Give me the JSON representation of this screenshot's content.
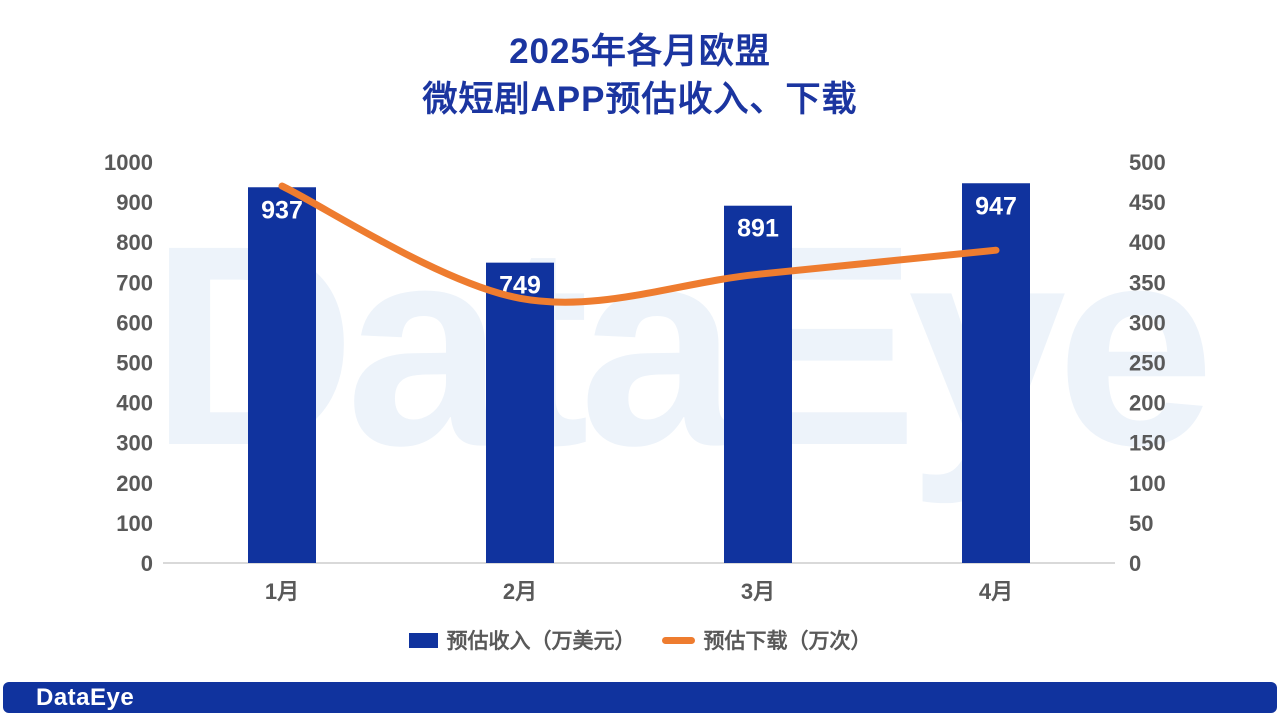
{
  "title": {
    "line1": "2025年各月欧盟",
    "line2": "微短剧APP预估收入、下载"
  },
  "watermark_text": "DataEye",
  "footer": {
    "logo_text": "DataEye"
  },
  "legend": {
    "revenue_label": "预估收入（万美元）",
    "downloads_label": "预估下载（万次）"
  },
  "colors": {
    "title_blue": "#1b35a0",
    "bar_blue": "#10339e",
    "line_orange": "#ee7c2f",
    "axis_text": "#595959",
    "axis_line": "#d9d9d9",
    "watermark_blue": "#edf3fa",
    "footer_blue": "#10339e",
    "bar_label_white": "#ffffff"
  },
  "chart_data": {
    "type": "combo",
    "title": "2025年各月欧盟微短剧APP预估收入、下载",
    "categories": [
      "1月",
      "2月",
      "3月",
      "4月"
    ],
    "series": [
      {
        "name": "预估收入（万美元）",
        "type": "bar",
        "axis": "left",
        "color": "#10339e",
        "values": [
          937,
          749,
          891,
          947
        ],
        "data_labels": true
      },
      {
        "name": "预估下载（万次）",
        "type": "line",
        "axis": "right",
        "color": "#ee7c2f",
        "values": [
          470,
          330,
          360,
          390
        ],
        "smooth": true
      }
    ],
    "left_axis": {
      "min": 0,
      "max": 1000,
      "step": 100
    },
    "right_axis": {
      "min": 0,
      "max": 500,
      "step": 50
    },
    "grid": "baseline-only",
    "legend_position": "bottom"
  }
}
